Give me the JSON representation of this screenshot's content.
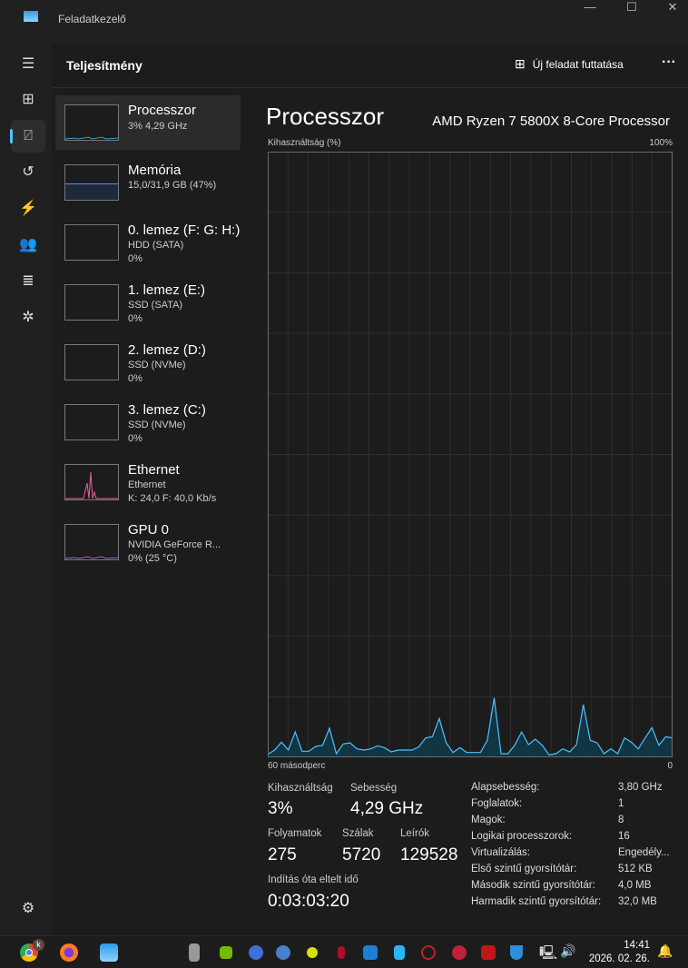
{
  "window": {
    "title": "Feladatkezelő"
  },
  "header": {
    "title": "Teljesítmény",
    "run_task": "Új feladat futtatása",
    "more": "···"
  },
  "sidebar": [
    {
      "name": "Processzor",
      "sub1": "3% 4,29 GHz",
      "sub2": "",
      "color": "#4cc2ff"
    },
    {
      "name": "Memória",
      "sub1": "15,0/31,9 GB (47%)",
      "sub2": "",
      "color": "#4c8cff"
    },
    {
      "name": "0. lemez (F: G: H:)",
      "sub1": "HDD (SATA)",
      "sub2": "0%",
      "color": "#9bd14c"
    },
    {
      "name": "1. lemez (E:)",
      "sub1": "SSD (SATA)",
      "sub2": "0%",
      "color": "#9bd14c"
    },
    {
      "name": "2. lemez (D:)",
      "sub1": "SSD (NVMe)",
      "sub2": "0%",
      "color": "#9bd14c"
    },
    {
      "name": "3. lemez (C:)",
      "sub1": "SSD (NVMe)",
      "sub2": "0%",
      "color": "#9bd14c"
    },
    {
      "name": "Ethernet",
      "sub1": "Ethernet",
      "sub2": "K: 24,0 F: 40,0 Kb/s",
      "color": "#e85f9a"
    },
    {
      "name": "GPU 0",
      "sub1": "NVIDIA GeForce R...",
      "sub2": "0% (25 °C)",
      "color": "#c080ff"
    }
  ],
  "detail": {
    "title": "Processzor",
    "cpu_name": "AMD Ryzen 7 5800X 8-Core Processor"
  },
  "chart_data": {
    "type": "area",
    "ylabel": "Kihasználtság (%)",
    "ymax_label": "100%",
    "xlabel_left": "60 másodperc",
    "xlabel_right": "0",
    "ylim": [
      0,
      100
    ],
    "xlim": [
      60,
      0
    ],
    "grid": true,
    "color": "#4cc2ff",
    "values": [
      0.5,
      1.2,
      2.5,
      1.2,
      4.2,
      1.0,
      1.0,
      1.8,
      2.0,
      4.8,
      0.6,
      2.2,
      2.4,
      1.4,
      1.2,
      1.4,
      1.9,
      1.6,
      0.9,
      1.2,
      1.2,
      1.2,
      1.7,
      3.2,
      3.4,
      6.4,
      2.4,
      0.8,
      1.6,
      0.8,
      0.8,
      0.8,
      2.8,
      9.8,
      0.6,
      0.6,
      2.0,
      4.2,
      2.1,
      3.0,
      2.0,
      0.4,
      0.6,
      1.4,
      0.9,
      2.1,
      8.7,
      2.8,
      2.4,
      0.6,
      1.4,
      0.6,
      3.2,
      2.5,
      1.4,
      3.2,
      4.9,
      2.0,
      3.4,
      3.2
    ]
  },
  "stats": {
    "util_label": "Kihasználtság",
    "util": "3%",
    "speed_label": "Sebesség",
    "speed": "4,29 GHz",
    "proc_label": "Folyamatok",
    "proc": "275",
    "threads_label": "Szálak",
    "threads": "5720",
    "handles_label": "Leírók",
    "handles": "129528",
    "uptime_label": "Indítás óta eltelt idő",
    "uptime": "0:03:03:20"
  },
  "specs": [
    {
      "k": "Alapsebesség:",
      "v": "3,80 GHz"
    },
    {
      "k": "Foglalatok:",
      "v": "1"
    },
    {
      "k": "Magok:",
      "v": "8"
    },
    {
      "k": "Logikai processzorok:",
      "v": "16"
    },
    {
      "k": "Virtualizálás:",
      "v": "Engedély..."
    },
    {
      "k": "Első szintű gyorsítótár:",
      "v": "512 KB"
    },
    {
      "k": "Második szintű gyorsítótár:",
      "v": "4,0 MB"
    },
    {
      "k": "Harmadik szintű gyorsítótár:",
      "v": "32,0 MB"
    }
  ],
  "taskbar": {
    "time": "14:41",
    "date": "2026. 02. 26.",
    "chrome_badge": "k"
  }
}
